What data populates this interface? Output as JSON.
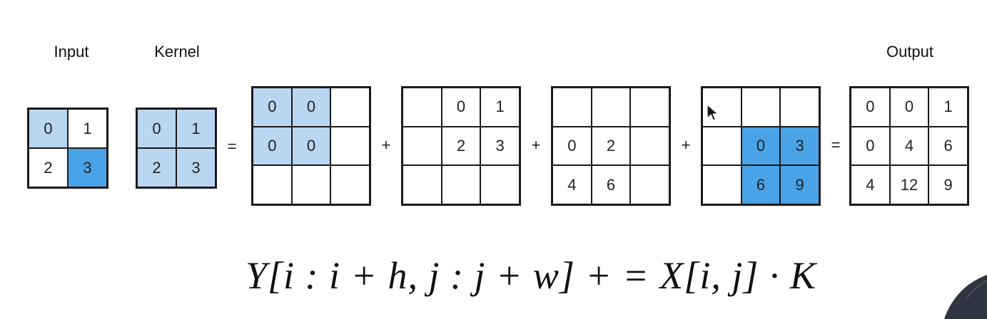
{
  "labels": {
    "input": "Input",
    "kernel": "Kernel",
    "output": "Output"
  },
  "operators": [
    "=",
    "+",
    "+",
    "+",
    "="
  ],
  "matrices": {
    "input": [
      [
        {
          "v": "0",
          "h": "light"
        },
        {
          "v": "1",
          "h": ""
        }
      ],
      [
        {
          "v": "2",
          "h": ""
        },
        {
          "v": "3",
          "h": "dark"
        }
      ]
    ],
    "kernel": [
      [
        {
          "v": "0",
          "h": "light"
        },
        {
          "v": "1",
          "h": "light"
        }
      ],
      [
        {
          "v": "2",
          "h": "light"
        },
        {
          "v": "3",
          "h": "light"
        }
      ]
    ],
    "term1": [
      [
        {
          "v": "0",
          "h": "light"
        },
        {
          "v": "0",
          "h": "light"
        },
        {
          "v": "",
          "h": ""
        }
      ],
      [
        {
          "v": "0",
          "h": "light"
        },
        {
          "v": "0",
          "h": "light"
        },
        {
          "v": "",
          "h": ""
        }
      ],
      [
        {
          "v": "",
          "h": ""
        },
        {
          "v": "",
          "h": ""
        },
        {
          "v": "",
          "h": ""
        }
      ]
    ],
    "term2": [
      [
        {
          "v": "",
          "h": ""
        },
        {
          "v": "0",
          "h": ""
        },
        {
          "v": "1",
          "h": ""
        }
      ],
      [
        {
          "v": "",
          "h": ""
        },
        {
          "v": "2",
          "h": ""
        },
        {
          "v": "3",
          "h": ""
        }
      ],
      [
        {
          "v": "",
          "h": ""
        },
        {
          "v": "",
          "h": ""
        },
        {
          "v": "",
          "h": ""
        }
      ]
    ],
    "term3": [
      [
        {
          "v": "",
          "h": ""
        },
        {
          "v": "",
          "h": ""
        },
        {
          "v": "",
          "h": ""
        }
      ],
      [
        {
          "v": "0",
          "h": ""
        },
        {
          "v": "2",
          "h": ""
        },
        {
          "v": "",
          "h": ""
        }
      ],
      [
        {
          "v": "4",
          "h": ""
        },
        {
          "v": "6",
          "h": ""
        },
        {
          "v": "",
          "h": ""
        }
      ]
    ],
    "term4": [
      [
        {
          "v": "",
          "h": ""
        },
        {
          "v": "",
          "h": ""
        },
        {
          "v": "",
          "h": ""
        }
      ],
      [
        {
          "v": "",
          "h": ""
        },
        {
          "v": "0",
          "h": "dark"
        },
        {
          "v": "3",
          "h": "dark"
        }
      ],
      [
        {
          "v": "",
          "h": ""
        },
        {
          "v": "6",
          "h": "dark"
        },
        {
          "v": "9",
          "h": "dark"
        }
      ]
    ],
    "output": [
      [
        {
          "v": "0",
          "h": ""
        },
        {
          "v": "0",
          "h": ""
        },
        {
          "v": "1",
          "h": ""
        }
      ],
      [
        {
          "v": "0",
          "h": ""
        },
        {
          "v": "4",
          "h": ""
        },
        {
          "v": "6",
          "h": ""
        }
      ],
      [
        {
          "v": "4",
          "h": ""
        },
        {
          "v": "12",
          "h": ""
        },
        {
          "v": "9",
          "h": ""
        }
      ]
    ]
  },
  "formula": "Y[i : i + h, j : j + w] + = X[i, j] · K",
  "colors": {
    "light_highlight": "#b9d6f2",
    "dark_highlight": "#4aa3e6"
  }
}
